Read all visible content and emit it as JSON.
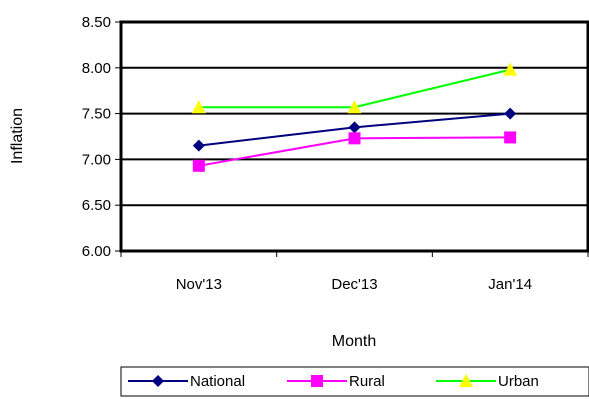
{
  "chart_data": {
    "type": "line",
    "title": "",
    "xlabel": "Month",
    "ylabel": "Inflation",
    "categories": [
      "Nov'13",
      "Dec'13",
      "Jan'14"
    ],
    "ylim": [
      6.0,
      8.5
    ],
    "yticks": [
      "6.00",
      "6.50",
      "7.00",
      "7.50",
      "8.00",
      "8.50"
    ],
    "grid": true,
    "legend_position": "bottom",
    "series": [
      {
        "name": "National",
        "values": [
          7.15,
          7.35,
          7.5
        ],
        "color": "#000080",
        "marker": "diamond"
      },
      {
        "name": "Rural",
        "values": [
          6.93,
          7.23,
          7.24
        ],
        "color": "#FF00FF",
        "marker": "square"
      },
      {
        "name": "Urban",
        "values": [
          7.57,
          7.57,
          7.98
        ],
        "color": "#00FF00",
        "marker_color": "#FFFF00",
        "marker": "triangle"
      }
    ]
  }
}
